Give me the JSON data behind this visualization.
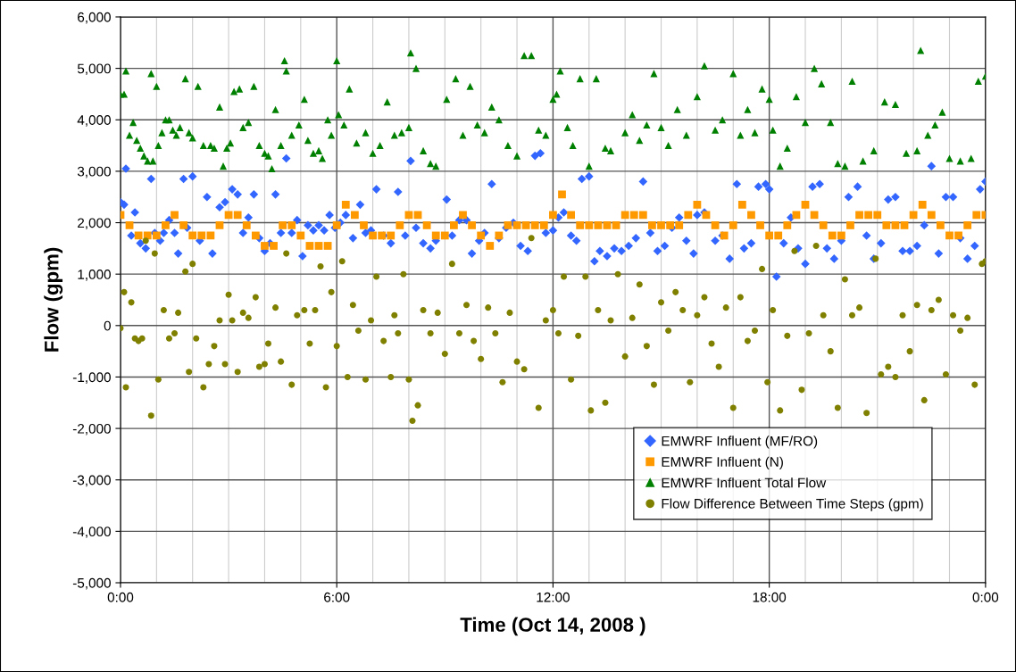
{
  "chart_data": {
    "type": "scatter",
    "xlabel": "Time (Oct 14, 2008 )",
    "ylabel": "Flow (gpm)",
    "xlim": [
      0,
      24
    ],
    "xticks": [
      {
        "value": 0,
        "label": "0:00"
      },
      {
        "value": 1,
        "label": null
      },
      {
        "value": 2,
        "label": null
      },
      {
        "value": 3,
        "label": null
      },
      {
        "value": 4,
        "label": null
      },
      {
        "value": 5,
        "label": null
      },
      {
        "value": 6,
        "label": "6:00"
      },
      {
        "value": 7,
        "label": null
      },
      {
        "value": 8,
        "label": null
      },
      {
        "value": 9,
        "label": null
      },
      {
        "value": 10,
        "label": null
      },
      {
        "value": 11,
        "label": null
      },
      {
        "value": 12,
        "label": "12:00"
      },
      {
        "value": 13,
        "label": null
      },
      {
        "value": 14,
        "label": null
      },
      {
        "value": 15,
        "label": null
      },
      {
        "value": 16,
        "label": null
      },
      {
        "value": 17,
        "label": null
      },
      {
        "value": 18,
        "label": "18:00"
      },
      {
        "value": 19,
        "label": null
      },
      {
        "value": 20,
        "label": null
      },
      {
        "value": 21,
        "label": null
      },
      {
        "value": 22,
        "label": null
      },
      {
        "value": 23,
        "label": null
      },
      {
        "value": 24,
        "label": "0:00"
      }
    ],
    "ylim": [
      -5000,
      6000
    ],
    "yticks": [
      {
        "value": -5000,
        "label": "-5,000"
      },
      {
        "value": -4000,
        "label": "-4,000"
      },
      {
        "value": -3000,
        "label": "-3,000"
      },
      {
        "value": -2000,
        "label": "-2,000"
      },
      {
        "value": -1000,
        "label": "-1,000"
      },
      0,
      {
        "value": 1000,
        "label": "1,000"
      },
      {
        "value": 2000,
        "label": "2,000"
      },
      {
        "value": 3000,
        "label": "3,000"
      },
      {
        "value": 4000,
        "label": "4,000"
      },
      {
        "value": 5000,
        "label": "5,000"
      },
      {
        "value": 6000,
        "label": "6,000"
      }
    ],
    "grid": true,
    "legend": "bottom right",
    "series": [
      {
        "name": "EMWRF Influent (MF/RO)",
        "color": "#3366ff",
        "marker": "diamond",
        "x": [
          0.0,
          0.1,
          0.15,
          0.3,
          0.4,
          0.55,
          0.7,
          0.85,
          0.95,
          1.1,
          1.2,
          1.35,
          1.5,
          1.6,
          1.75,
          1.85,
          2.0,
          2.2,
          2.4,
          2.55,
          2.75,
          2.9,
          3.1,
          3.25,
          3.4,
          3.55,
          3.7,
          3.85,
          4.0,
          4.15,
          4.3,
          4.45,
          4.6,
          4.75,
          4.9,
          5.05,
          5.2,
          5.35,
          5.5,
          5.65,
          5.8,
          5.95,
          6.1,
          6.25,
          6.45,
          6.65,
          6.8,
          6.95,
          7.1,
          7.3,
          7.5,
          7.7,
          7.9,
          8.05,
          8.2,
          8.4,
          8.6,
          8.75,
          9.05,
          9.2,
          9.4,
          9.6,
          9.75,
          9.95,
          10.1,
          10.3,
          10.5,
          10.7,
          10.9,
          11.1,
          11.3,
          11.5,
          11.65,
          11.8,
          12.0,
          12.15,
          12.3,
          12.5,
          12.65,
          12.8,
          13.0,
          13.15,
          13.3,
          13.5,
          13.7,
          13.9,
          14.1,
          14.3,
          14.5,
          14.7,
          14.9,
          15.1,
          15.3,
          15.5,
          15.7,
          15.9,
          16.0,
          16.2,
          16.5,
          16.7,
          16.9,
          17.1,
          17.3,
          17.5,
          17.7,
          17.9,
          18.0,
          18.2,
          18.4,
          18.6,
          18.8,
          19.0,
          19.2,
          19.4,
          19.6,
          19.8,
          20.0,
          20.2,
          20.45,
          20.7,
          20.9,
          21.1,
          21.3,
          21.5,
          21.7,
          21.9,
          22.1,
          22.3,
          22.5,
          22.7,
          22.9,
          23.1,
          23.3,
          23.5,
          23.7,
          23.85,
          24.0
        ],
        "values": [
          2400,
          2350,
          3050,
          1750,
          2200,
          1600,
          1500,
          2850,
          1800,
          1650,
          1800,
          2050,
          1800,
          1400,
          2850,
          1900,
          2900,
          1650,
          2500,
          1400,
          2300,
          2400,
          2650,
          2550,
          1800,
          2100,
          2550,
          1700,
          1450,
          1600,
          2550,
          1800,
          3250,
          1800,
          2050,
          1350,
          1950,
          1850,
          1950,
          1850,
          2150,
          1900,
          2000,
          2150,
          1700,
          2350,
          1800,
          1850,
          2650,
          1750,
          1600,
          2600,
          1750,
          3200,
          1900,
          1600,
          1500,
          1650,
          2450,
          1750,
          2050,
          2050,
          1400,
          1650,
          1800,
          2750,
          1700,
          1900,
          2000,
          1550,
          1450,
          3300,
          3350,
          1800,
          1850,
          2100,
          2200,
          1750,
          1650,
          2850,
          2900,
          1250,
          1450,
          1350,
          1500,
          1450,
          1550,
          1700,
          2800,
          1800,
          1450,
          1550,
          1900,
          2100,
          1650,
          1400,
          2150,
          2200,
          1650,
          1750,
          1300,
          2750,
          1500,
          1600,
          2700,
          2750,
          2650,
          950,
          1600,
          2100,
          1500,
          1200,
          2700,
          2750,
          1500,
          1300,
          1650,
          2500,
          2700,
          1750,
          1300,
          1600,
          2450,
          2500,
          1450,
          1450,
          1550,
          1950,
          3100,
          1400,
          2500,
          2500,
          1700,
          1300,
          1550,
          2650,
          2800
        ]
      },
      {
        "name": "EMWRF Influent (N)",
        "color": "#ff9900",
        "marker": "square",
        "x": [
          0.0,
          0.25,
          0.5,
          0.75,
          1.0,
          1.25,
          1.5,
          1.75,
          2.0,
          2.25,
          2.5,
          2.75,
          3.0,
          3.25,
          3.5,
          3.75,
          4.0,
          4.25,
          4.5,
          4.75,
          5.0,
          5.25,
          5.5,
          5.75,
          6.0,
          6.25,
          6.5,
          6.75,
          7.0,
          7.25,
          7.5,
          7.75,
          8.0,
          8.25,
          8.5,
          8.75,
          9.0,
          9.25,
          9.5,
          9.75,
          10.0,
          10.25,
          10.5,
          10.75,
          11.0,
          11.25,
          11.5,
          11.75,
          12.0,
          12.25,
          12.5,
          12.75,
          13.0,
          13.25,
          13.5,
          13.75,
          14.0,
          14.25,
          14.5,
          14.75,
          15.0,
          15.25,
          15.5,
          15.75,
          16.0,
          16.25,
          16.5,
          16.75,
          17.0,
          17.25,
          17.5,
          17.75,
          18.0,
          18.25,
          18.5,
          18.75,
          19.0,
          19.25,
          19.5,
          19.75,
          20.0,
          20.25,
          20.5,
          20.75,
          21.0,
          21.25,
          21.5,
          21.75,
          22.0,
          22.25,
          22.5,
          22.75,
          23.0,
          23.25,
          23.5,
          23.75,
          24.0
        ],
        "values": [
          2150,
          1950,
          1750,
          1750,
          1750,
          1950,
          2150,
          1950,
          1750,
          1750,
          1750,
          1950,
          2150,
          2150,
          1950,
          1750,
          1550,
          1550,
          1950,
          1950,
          1750,
          1550,
          1550,
          1550,
          1950,
          2350,
          2150,
          1950,
          1750,
          1750,
          1750,
          1950,
          2150,
          2150,
          1950,
          1750,
          1750,
          1950,
          2150,
          1950,
          1750,
          1550,
          1750,
          1950,
          1950,
          1950,
          1950,
          1950,
          2150,
          2550,
          2150,
          1950,
          1950,
          1950,
          1950,
          1950,
          2150,
          2150,
          2150,
          1950,
          1950,
          1950,
          1950,
          2150,
          2350,
          2150,
          1950,
          1750,
          1950,
          2350,
          2150,
          1950,
          1750,
          1750,
          1950,
          2150,
          2350,
          2150,
          1950,
          1750,
          1750,
          1950,
          2150,
          2150,
          2150,
          1950,
          1950,
          1950,
          2150,
          2350,
          2150,
          1950,
          1750,
          1750,
          1950,
          2150,
          2150
        ]
      },
      {
        "name": "EMWRF Influent Total Flow",
        "color": "#008000",
        "marker": "triangle",
        "x": [
          0.0,
          0.1,
          0.15,
          0.25,
          0.35,
          0.45,
          0.55,
          0.65,
          0.75,
          0.85,
          0.9,
          1.0,
          1.05,
          1.15,
          1.25,
          1.35,
          1.45,
          1.55,
          1.65,
          1.8,
          1.9,
          2.0,
          2.15,
          2.3,
          2.5,
          2.6,
          2.75,
          2.85,
          2.95,
          3.05,
          3.15,
          3.3,
          3.4,
          3.55,
          3.7,
          3.85,
          4.0,
          4.1,
          4.2,
          4.3,
          4.45,
          4.55,
          4.6,
          4.75,
          4.95,
          5.1,
          5.2,
          5.35,
          5.5,
          5.6,
          5.75,
          5.85,
          6.0,
          6.05,
          6.2,
          6.35,
          6.55,
          6.8,
          7.0,
          7.2,
          7.4,
          7.6,
          7.8,
          8.0,
          8.05,
          8.2,
          8.4,
          8.6,
          8.75,
          9.05,
          9.3,
          9.5,
          9.7,
          9.9,
          10.1,
          10.3,
          10.5,
          10.75,
          11.0,
          11.2,
          11.4,
          11.6,
          11.8,
          12.0,
          12.1,
          12.2,
          12.4,
          12.55,
          12.75,
          13.0,
          13.2,
          13.45,
          13.6,
          14.0,
          14.2,
          14.4,
          14.6,
          14.8,
          15.0,
          15.2,
          15.45,
          15.7,
          16.0,
          16.2,
          16.5,
          16.7,
          17.0,
          17.2,
          17.4,
          17.6,
          17.8,
          18.0,
          18.1,
          18.3,
          18.5,
          18.75,
          19.0,
          19.25,
          19.45,
          19.7,
          19.9,
          20.1,
          20.3,
          20.6,
          20.9,
          21.2,
          21.5,
          21.8,
          22.1,
          22.2,
          22.4,
          22.6,
          22.8,
          23.0,
          23.3,
          23.6,
          23.8,
          24.0
        ],
        "values": [
          4500,
          4500,
          4950,
          3700,
          3950,
          3600,
          3450,
          3300,
          3200,
          4900,
          3200,
          4650,
          3500,
          3750,
          4000,
          4000,
          3800,
          3700,
          3850,
          4800,
          3750,
          3650,
          4650,
          3500,
          3500,
          3450,
          4250,
          3100,
          3450,
          3550,
          4550,
          4600,
          3850,
          3950,
          4650,
          3500,
          3350,
          3300,
          3050,
          4200,
          3500,
          5150,
          4950,
          3700,
          3900,
          4400,
          3600,
          3350,
          3400,
          3250,
          4000,
          3700,
          5150,
          4100,
          3900,
          4600,
          3550,
          3750,
          3350,
          3500,
          4350,
          3700,
          3750,
          3850,
          5300,
          5000,
          3400,
          3150,
          3100,
          4400,
          4800,
          3700,
          4650,
          3900,
          3750,
          4250,
          4000,
          3500,
          3300,
          5250,
          5250,
          3800,
          3700,
          4400,
          4500,
          4950,
          3850,
          3500,
          4800,
          3100,
          4800,
          3450,
          3400,
          3750,
          4100,
          3600,
          3900,
          4900,
          3850,
          3500,
          4200,
          3700,
          4450,
          5050,
          3800,
          4000,
          4900,
          3700,
          4200,
          3750,
          4600,
          4400,
          3800,
          3100,
          3450,
          4450,
          3950,
          5000,
          4700,
          3950,
          3150,
          3100,
          4750,
          3200,
          3400,
          4350,
          4300,
          3350,
          3400,
          5350,
          3700,
          3900,
          4150,
          3250,
          3200,
          3250,
          4750,
          4850
        ]
      },
      {
        "name": "Flow Difference Between Time Steps (gpm)",
        "color": "#808000",
        "marker": "circle",
        "x": [
          0.0,
          0.1,
          0.15,
          0.3,
          0.4,
          0.5,
          0.6,
          0.7,
          0.85,
          0.95,
          1.05,
          1.2,
          1.35,
          1.5,
          1.6,
          1.8,
          1.9,
          2.0,
          2.1,
          2.3,
          2.45,
          2.6,
          2.75,
          2.9,
          3.0,
          3.1,
          3.25,
          3.4,
          3.55,
          3.75,
          3.85,
          4.0,
          4.1,
          4.3,
          4.45,
          4.6,
          4.75,
          4.9,
          5.1,
          5.25,
          5.4,
          5.55,
          5.7,
          5.85,
          6.0,
          6.15,
          6.3,
          6.45,
          6.6,
          6.8,
          6.95,
          7.1,
          7.3,
          7.5,
          7.6,
          7.7,
          7.85,
          8.0,
          8.1,
          8.25,
          8.4,
          8.6,
          8.8,
          9.0,
          9.2,
          9.4,
          9.6,
          9.8,
          10.0,
          10.2,
          10.4,
          10.6,
          10.8,
          11.0,
          11.2,
          11.4,
          11.6,
          11.8,
          12.0,
          12.15,
          12.3,
          12.5,
          12.7,
          12.9,
          13.05,
          13.25,
          13.45,
          13.6,
          13.8,
          14.0,
          14.2,
          14.4,
          14.6,
          14.8,
          15.0,
          15.2,
          15.4,
          15.6,
          15.8,
          16.0,
          16.2,
          16.4,
          16.6,
          16.8,
          17.0,
          17.2,
          17.4,
          17.6,
          17.8,
          17.95,
          18.1,
          18.3,
          18.5,
          18.7,
          18.9,
          19.1,
          19.3,
          19.5,
          19.7,
          19.9,
          20.1,
          20.3,
          20.5,
          20.7,
          20.95,
          21.1,
          21.3,
          21.5,
          21.7,
          21.9,
          22.1,
          22.3,
          22.5,
          22.7,
          22.9,
          23.1,
          23.3,
          23.5,
          23.7,
          23.9,
          24.0
        ],
        "values": [
          -50,
          650,
          -1200,
          450,
          -250,
          -300,
          -250,
          1650,
          -1750,
          1400,
          -1050,
          300,
          -250,
          -150,
          250,
          1050,
          -900,
          1200,
          -250,
          -1200,
          -750,
          -400,
          100,
          -750,
          600,
          100,
          -900,
          250,
          150,
          550,
          -800,
          -750,
          -350,
          350,
          -700,
          1400,
          -1150,
          200,
          300,
          -350,
          300,
          1150,
          -1200,
          650,
          -400,
          1250,
          -1000,
          400,
          -100,
          -1050,
          100,
          950,
          -300,
          -1000,
          200,
          -150,
          1000,
          -1050,
          -1850,
          -1550,
          300,
          -150,
          250,
          -550,
          1200,
          -150,
          400,
          -300,
          -650,
          350,
          -150,
          -1100,
          250,
          -700,
          -850,
          1700,
          -1600,
          100,
          300,
          -150,
          950,
          -1050,
          -200,
          950,
          -1650,
          300,
          -1500,
          100,
          1000,
          -600,
          150,
          800,
          -400,
          -1150,
          450,
          -100,
          650,
          300,
          -1100,
          200,
          550,
          -350,
          -800,
          350,
          -1600,
          550,
          -300,
          -100,
          1100,
          -1100,
          300,
          -1650,
          -200,
          1450,
          -1250,
          -150,
          1550,
          200,
          -500,
          -1600,
          900,
          200,
          350,
          -1700,
          1300,
          -950,
          -800,
          -1000,
          200,
          -500,
          400,
          -1450,
          300,
          500,
          -950,
          200,
          -100,
          150,
          -1150,
          1200,
          1250
        ]
      }
    ]
  }
}
